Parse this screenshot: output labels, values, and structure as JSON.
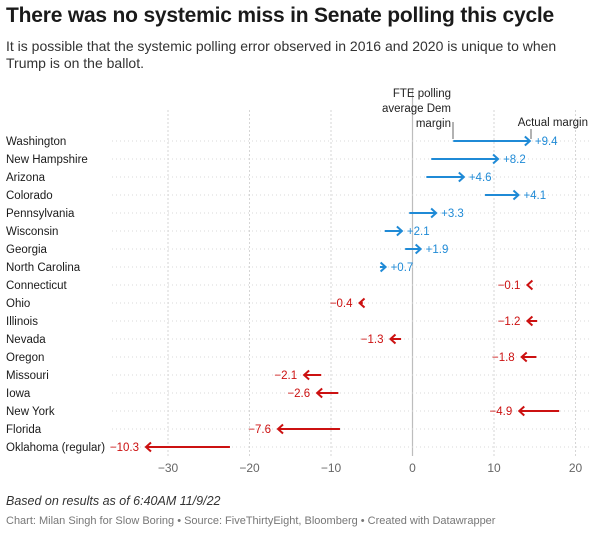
{
  "title": "There was no systemic miss in Senate polling this cycle",
  "subtitle": "It is possible that the systemic polling error observed in 2016 and 2020 is unique to when Trump is on the ballot.",
  "note": "Based on results as of 6:40AM 11/9/22",
  "credit": "Chart: Milan Singh for Slow Boring • Source: FiveThirtyEight, Bloomberg • Created with Datawrapper",
  "chart_data": {
    "type": "arrow",
    "title": "There was no systemic miss in Senate polling this cycle",
    "xlim": [
      -33,
      20
    ],
    "xticks": [
      -30,
      -20,
      -10,
      0,
      10,
      20
    ],
    "xtick_labels": [
      "−30",
      "−20",
      "−10",
      "0",
      "10",
      "20"
    ],
    "annotations": {
      "start": [
        "FTE polling",
        "average Dem",
        "margin"
      ],
      "end": "Actual margin"
    },
    "colors": {
      "positive": "#1f8ad6",
      "negative": "#cc1111"
    },
    "rows": [
      {
        "state": "Washington",
        "fte": 5,
        "actual": 14.4,
        "diff": 9.4,
        "diff_label": "+9.4"
      },
      {
        "state": "New Hampshire",
        "fte": 2.3,
        "actual": 10.5,
        "diff": 8.2,
        "diff_label": "+8.2"
      },
      {
        "state": "Arizona",
        "fte": 1.7,
        "actual": 6.3,
        "diff": 4.6,
        "diff_label": "+4.6"
      },
      {
        "state": "Colorado",
        "fte": 8.9,
        "actual": 13,
        "diff": 4.1,
        "diff_label": "+4.1"
      },
      {
        "state": "Pennsylvania",
        "fte": -0.4,
        "actual": 2.9,
        "diff": 3.3,
        "diff_label": "+3.3"
      },
      {
        "state": "Wisconsin",
        "fte": -3.4,
        "actual": -1.3,
        "diff": 2.1,
        "diff_label": "+2.1"
      },
      {
        "state": "Georgia",
        "fte": -0.9,
        "actual": 1,
        "diff": 1.9,
        "diff_label": "+1.9"
      },
      {
        "state": "North Carolina",
        "fte": -4,
        "actual": -3.3,
        "diff": 0.7,
        "diff_label": "+0.7"
      },
      {
        "state": "Connecticut",
        "fte": 14.2,
        "actual": 14.1,
        "diff": -0.1,
        "diff_label": "−0.1"
      },
      {
        "state": "Ohio",
        "fte": -6.1,
        "actual": -6.5,
        "diff": -0.4,
        "diff_label": "−0.4"
      },
      {
        "state": "Illinois",
        "fte": 15.3,
        "actual": 14.1,
        "diff": -1.2,
        "diff_label": "−1.2"
      },
      {
        "state": "Nevada",
        "fte": -1.4,
        "actual": -2.7,
        "diff": -1.3,
        "diff_label": "−1.3"
      },
      {
        "state": "Oregon",
        "fte": 15.2,
        "actual": 13.4,
        "diff": -1.8,
        "diff_label": "−1.8"
      },
      {
        "state": "Missouri",
        "fte": -11.2,
        "actual": -13.3,
        "diff": -2.1,
        "diff_label": "−2.1"
      },
      {
        "state": "Iowa",
        "fte": -9.1,
        "actual": -11.7,
        "diff": -2.6,
        "diff_label": "−2.6"
      },
      {
        "state": "New York",
        "fte": 18,
        "actual": 13.1,
        "diff": -4.9,
        "diff_label": "−4.9"
      },
      {
        "state": "Florida",
        "fte": -8.9,
        "actual": -16.5,
        "diff": -7.6,
        "diff_label": "−7.6"
      },
      {
        "state": "Oklahoma (regular)",
        "fte": -22.4,
        "actual": -32.7,
        "diff": -10.3,
        "diff_label": "−10.3"
      }
    ]
  }
}
